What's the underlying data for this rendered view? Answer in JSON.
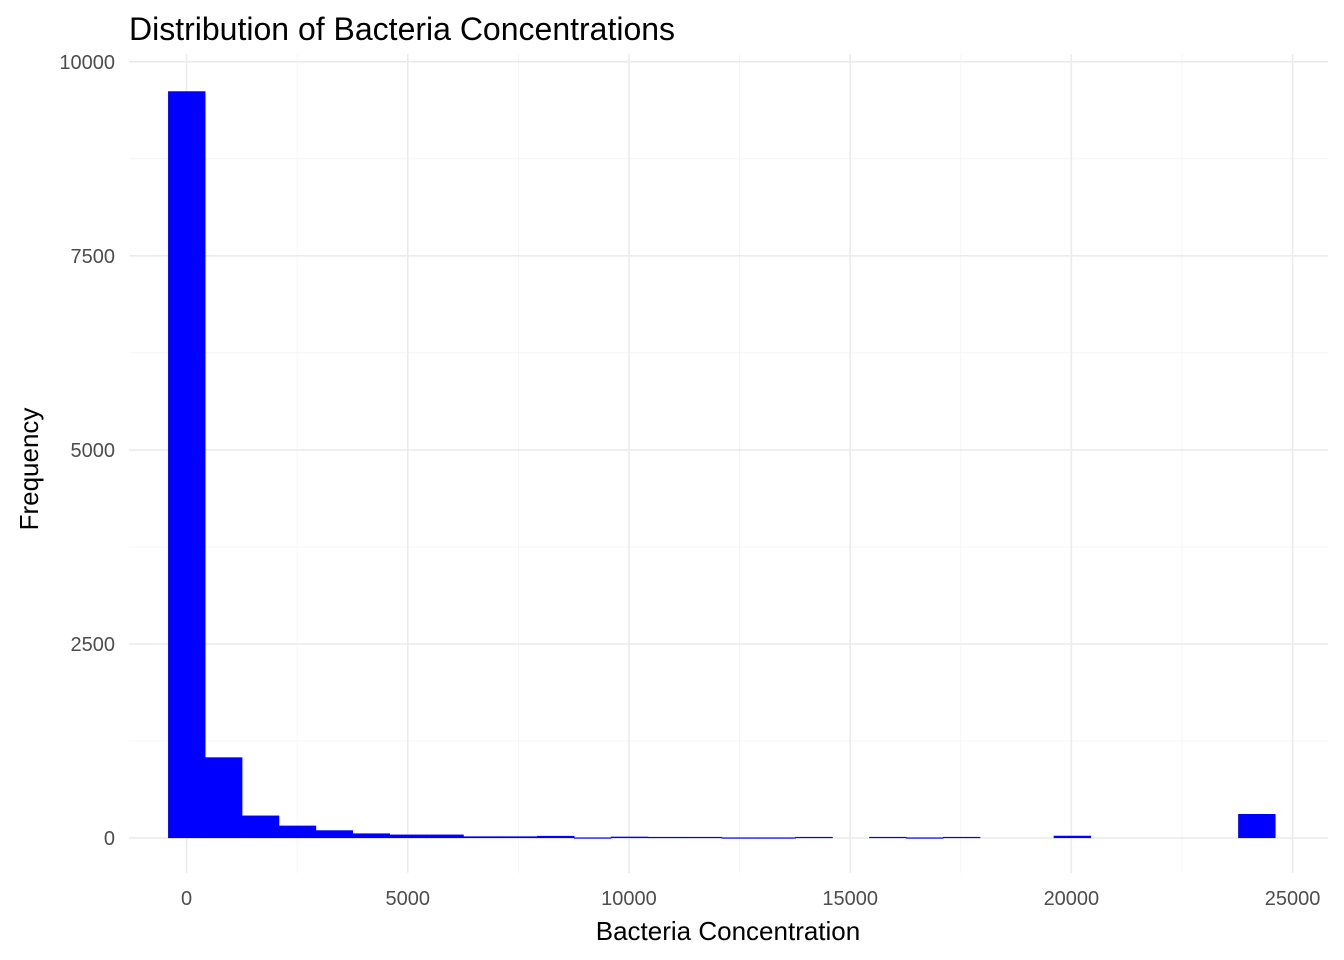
{
  "chart_data": {
    "type": "bar",
    "title": "Distribution of Bacteria Concentrations",
    "xlabel": "Bacteria Concentration",
    "ylabel": "Frequency",
    "xlim": [
      -1300,
      25800
    ],
    "ylim": [
      -450,
      10100
    ],
    "x_ticks": [
      0,
      5000,
      10000,
      15000,
      20000,
      25000
    ],
    "y_ticks": [
      0,
      2500,
      5000,
      7500,
      10000
    ],
    "x_tick_labels": [
      "0",
      "5000",
      "10000",
      "15000",
      "20000",
      "25000"
    ],
    "y_tick_labels": [
      "0",
      "2500",
      "5000",
      "7500",
      "10000"
    ],
    "grid": true,
    "bar_color": "#0000ff",
    "bin_width": 834,
    "bins": [
      {
        "x": 0,
        "count": 9620
      },
      {
        "x": 834,
        "count": 1040
      },
      {
        "x": 1668,
        "count": 290
      },
      {
        "x": 2502,
        "count": 160
      },
      {
        "x": 3336,
        "count": 100
      },
      {
        "x": 4170,
        "count": 60
      },
      {
        "x": 5004,
        "count": 45
      },
      {
        "x": 5838,
        "count": 45
      },
      {
        "x": 6672,
        "count": 22
      },
      {
        "x": 7506,
        "count": 22
      },
      {
        "x": 8340,
        "count": 28
      },
      {
        "x": 9174,
        "count": 8
      },
      {
        "x": 10008,
        "count": 18
      },
      {
        "x": 10842,
        "count": 15
      },
      {
        "x": 11676,
        "count": 15
      },
      {
        "x": 12510,
        "count": 8
      },
      {
        "x": 13344,
        "count": 8
      },
      {
        "x": 14178,
        "count": 15
      },
      {
        "x": 15012,
        "count": 0
      },
      {
        "x": 15846,
        "count": 15
      },
      {
        "x": 16680,
        "count": 8
      },
      {
        "x": 17514,
        "count": 15
      },
      {
        "x": 18348,
        "count": 0
      },
      {
        "x": 19182,
        "count": 0
      },
      {
        "x": 20016,
        "count": 30
      },
      {
        "x": 20850,
        "count": 0
      },
      {
        "x": 21684,
        "count": 0
      },
      {
        "x": 22518,
        "count": 0
      },
      {
        "x": 23352,
        "count": 0
      },
      {
        "x": 24186,
        "count": 310
      }
    ]
  }
}
